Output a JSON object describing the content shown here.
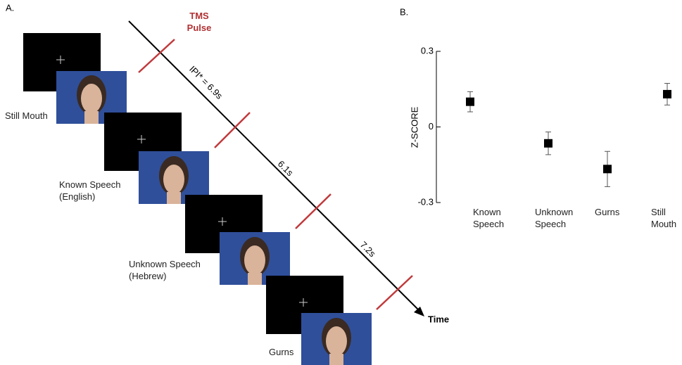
{
  "panel_a": {
    "label": "A.",
    "pulse_label": "TMS Pulse",
    "intervals": [
      "IPI* = 6.9s",
      "6.1s",
      "7.2s"
    ],
    "time_label": "Time",
    "conditions": [
      "Still Mouth",
      "Known Speech (English)",
      "Unknown Speech (Hebrew)",
      "Gurns"
    ]
  },
  "chart_data": {
    "type": "errorbar",
    "panel_label": "B.",
    "y_label": "Z-SCORE",
    "categories": [
      "Known Speech",
      "Unknown Speech",
      "Gurns",
      "Still Mouth"
    ],
    "values": [
      0.1,
      -0.065,
      -0.167,
      0.13
    ],
    "errors": [
      0.04,
      0.045,
      0.07,
      0.043
    ],
    "color": "#000000",
    "ylim": [
      -0.3,
      0.3
    ],
    "yticks": [
      0.3,
      0,
      -0.3
    ]
  }
}
